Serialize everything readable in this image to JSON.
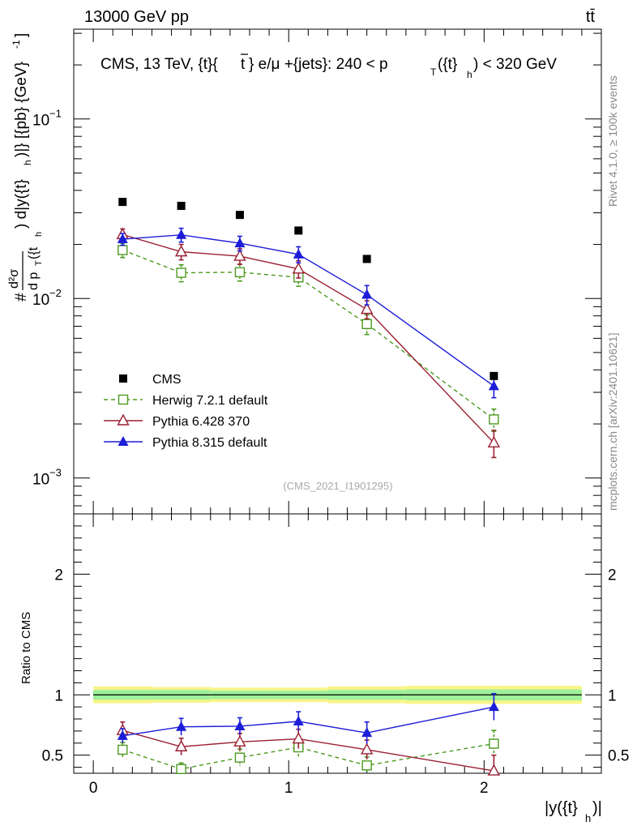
{
  "header": {
    "left_text": "13000 GeV pp",
    "right_text": "tt̄"
  },
  "side_labels": {
    "rivet": "Rivet 4.1.0, ≥ 100k events",
    "mcplots": "mcplots.cern.ch [arXiv:2401.10621]"
  },
  "chart_data": {
    "type": "line",
    "title": "CMS, 13 TeV, {t}{t̄} e/μ +{jets}: 240 < p_T({t}_h) < 320 GeV",
    "title_parts": {
      "prefix": "CMS, 13 TeV, {t}{",
      "tbar": "t",
      "middle": "} e/μ +{jets}: 240 <  p",
      "sub_T": "T",
      "paren_open": "({t}",
      "sub_h": "h",
      "suffix": ") < 320 GeV"
    },
    "watermark": "(CMS_2021_I1901295)",
    "ylabel": "#d²σ/dp_T({t}_h) d|y({t}_h)| [{pb} {GeV}^-1]",
    "ylabel_parts": {
      "hash": "#",
      "num": "d²σ",
      "den_d": "d p",
      "den_T": "T",
      "den_tail": "({t",
      "den_h": "h",
      "right": ") d|y({t}",
      "right_h": "h",
      "right_tail": ")|} [{pb} {GeV}",
      "exp": "-1",
      "close": "]"
    },
    "xlabel": "|y({t}_h)|",
    "xlabel_parts": {
      "main": "|y({t}",
      "sub": "h",
      "end": ")|"
    },
    "ratio_ylabel": "Ratio to CMS",
    "x_range": [
      -0.1,
      2.6
    ],
    "main_yrange_log10": [
      -3.2,
      -0.5
    ],
    "ratio_yrange": [
      0.35,
      2.5
    ],
    "x_ticks": [
      {
        "v": 0,
        "label": "0"
      },
      {
        "v": 1,
        "label": "1"
      },
      {
        "v": 2,
        "label": "2"
      }
    ],
    "main_y_ticks": [
      {
        "exp": -1,
        "base": "10",
        "sup": "−1"
      },
      {
        "exp": -2,
        "base": "10",
        "sup": "−2"
      },
      {
        "exp": -3,
        "base": "10",
        "sup": "−3"
      }
    ],
    "ratio_y_ticks": [
      {
        "v": 0.5,
        "label": "0.5"
      },
      {
        "v": 1,
        "label": "1"
      },
      {
        "v": 2,
        "label": "2"
      }
    ],
    "bins": [
      [
        0.0,
        0.3
      ],
      [
        0.3,
        0.6
      ],
      [
        0.6,
        0.9
      ],
      [
        0.9,
        1.2
      ],
      [
        1.2,
        1.6
      ],
      [
        1.6,
        2.5
      ]
    ],
    "x": [
      0.15,
      0.45,
      0.75,
      1.05,
      1.4,
      2.05
    ],
    "data": {
      "name": "CMS",
      "values": [
        0.0345,
        0.0328,
        0.0292,
        0.0239,
        0.0166,
        0.0037
      ],
      "ratio_band_inner": [
        0.04,
        0.04,
        0.035,
        0.035,
        0.04,
        0.045
      ],
      "ratio_band_outer": [
        0.07,
        0.065,
        0.06,
        0.06,
        0.07,
        0.075
      ]
    },
    "series": [
      {
        "name": "Herwig 7.2.1 default",
        "color": "#4c9a1f",
        "marker": "open-square",
        "dashed": true,
        "values": [
          0.0186,
          0.0139,
          0.014,
          0.0131,
          0.0072,
          0.00212
        ],
        "err_up": [
          0.0017,
          0.0015,
          0.0015,
          0.0014,
          0.0009,
          0.0003
        ],
        "err_dn": [
          0.0017,
          0.0015,
          0.0015,
          0.0014,
          0.0009,
          0.0003
        ],
        "ratio": [
          0.545,
          0.385,
          0.48,
          0.565,
          0.415,
          0.595
        ],
        "ratio_err": [
          0.06,
          0.05,
          0.07,
          0.08,
          0.07,
          0.11
        ]
      },
      {
        "name": "Pythia 6.428 370",
        "color": "#9a1f32",
        "marker": "open-triangle",
        "dashed": false,
        "values": [
          0.0227,
          0.0182,
          0.0172,
          0.0146,
          0.0087,
          0.00157
        ],
        "err_up": [
          0.0017,
          0.0018,
          0.0017,
          0.0016,
          0.001,
          0.00027
        ],
        "err_dn": [
          0.0017,
          0.0018,
          0.0017,
          0.0016,
          0.001,
          0.00027
        ],
        "ratio": [
          0.705,
          0.57,
          0.61,
          0.635,
          0.545,
          0.37
        ],
        "ratio_err": [
          0.07,
          0.07,
          0.07,
          0.08,
          0.08,
          0.13
        ]
      },
      {
        "name": "Pythia 8.315 default",
        "color": "#1d1dd8",
        "marker": "filled-triangle",
        "dashed": false,
        "values": [
          0.0214,
          0.0226,
          0.0203,
          0.0176,
          0.0105,
          0.00325
        ],
        "err_up": [
          0.0016,
          0.002,
          0.0019,
          0.0018,
          0.0013,
          0.00045
        ],
        "err_dn": [
          0.0016,
          0.002,
          0.0019,
          0.0018,
          0.0013,
          0.00045
        ],
        "ratio": [
          0.66,
          0.735,
          0.74,
          0.78,
          0.685,
          0.9
        ],
        "ratio_err": [
          0.06,
          0.07,
          0.07,
          0.08,
          0.09,
          0.11
        ]
      }
    ],
    "legend_position": "lower-left"
  }
}
